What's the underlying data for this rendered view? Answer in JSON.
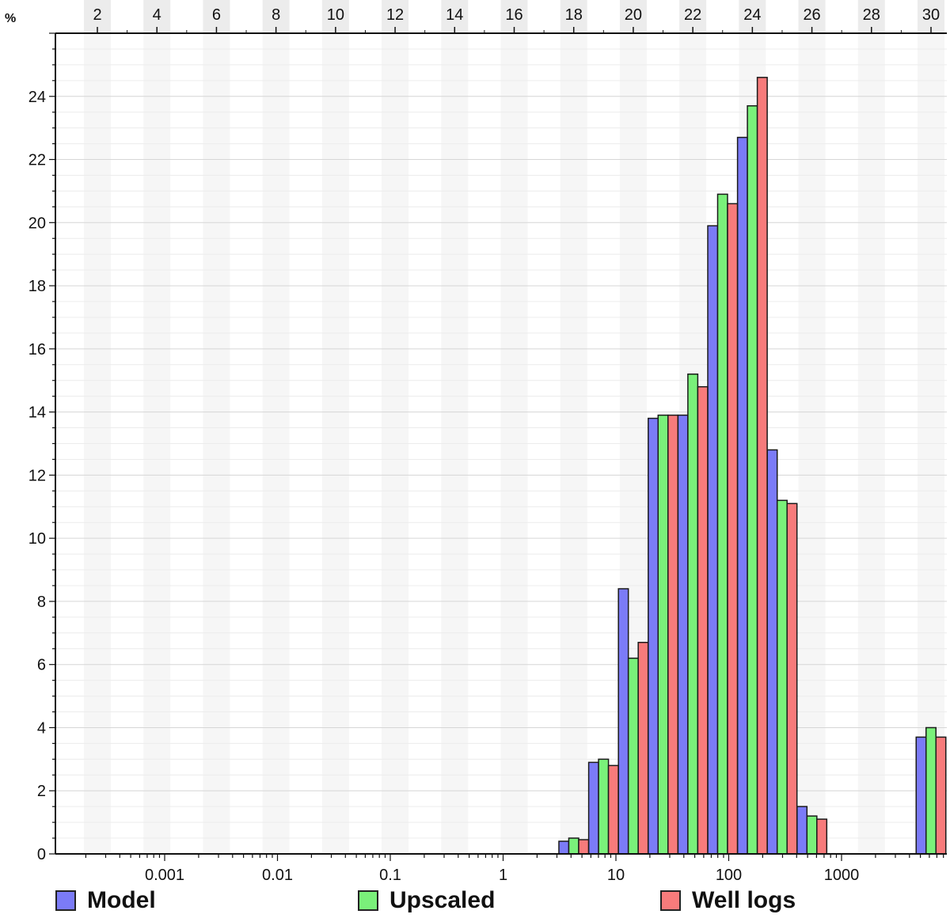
{
  "chart_data": {
    "type": "bar",
    "y_unit_label": "%",
    "ylim": [
      0,
      26
    ],
    "y_ticks": [
      0,
      2,
      4,
      6,
      8,
      10,
      12,
      14,
      16,
      18,
      20,
      22,
      24
    ],
    "x_bottom_scale": "log",
    "x_bottom_ticks": [
      "0.001",
      "0.01",
      "0.1",
      "1",
      "10",
      "100",
      "1000"
    ],
    "x_top_ticks": [
      "2",
      "4",
      "6",
      "8",
      "10",
      "12",
      "14",
      "16",
      "18",
      "20",
      "22",
      "24",
      "26",
      "28",
      "30"
    ],
    "grid": true,
    "legend_position": "bottom",
    "x_top_bins": [
      18,
      19,
      20,
      21,
      22,
      23,
      24,
      25,
      26,
      30
    ],
    "series": [
      {
        "name": "Model",
        "color": "#7b7bf7",
        "values": [
          0.4,
          2.9,
          8.4,
          13.8,
          13.9,
          19.9,
          22.7,
          12.8,
          1.5,
          3.7
        ]
      },
      {
        "name": "Upscaled",
        "color": "#7af07a",
        "values": [
          0.5,
          3.0,
          6.2,
          13.9,
          15.2,
          20.9,
          23.7,
          11.2,
          1.2,
          4.0
        ]
      },
      {
        "name": "Well logs",
        "color": "#f77b7b",
        "values": [
          0.45,
          2.8,
          6.7,
          13.9,
          14.8,
          20.6,
          24.6,
          11.1,
          1.1,
          3.7
        ]
      }
    ]
  }
}
